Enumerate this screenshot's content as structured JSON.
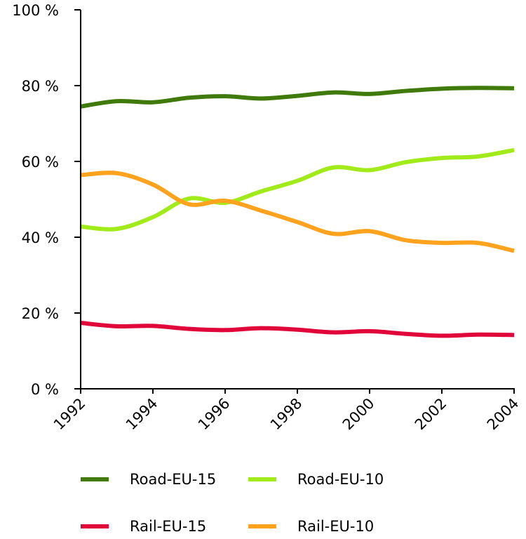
{
  "chart_data": {
    "type": "line",
    "title": "",
    "xlabel": "",
    "ylabel": "",
    "x": [
      1992,
      1993,
      1994,
      1995,
      1996,
      1997,
      1998,
      1999,
      2000,
      2001,
      2002,
      2003,
      2004
    ],
    "x_ticks": [
      "1992",
      "1994",
      "1996",
      "1998",
      "2000",
      "2002",
      "2004"
    ],
    "y_ticks": [
      "0 %",
      "20 %",
      "40 %",
      "60 %",
      "80 %",
      "100 %"
    ],
    "ylim": [
      0,
      100
    ],
    "xlim": [
      1992,
      2004
    ],
    "grid": false,
    "legend_position": "bottom",
    "series": [
      {
        "name": "Road-EU-15",
        "color": "#3f7a0a",
        "values": [
          74.5,
          75.9,
          75.6,
          76.8,
          77.2,
          76.6,
          77.3,
          78.2,
          77.8,
          78.6,
          79.2,
          79.4,
          79.3
        ]
      },
      {
        "name": "Road-EU-10",
        "color": "#a2eb1a",
        "values": [
          42.8,
          42.2,
          45.3,
          50.2,
          49.1,
          52.1,
          54.9,
          58.4,
          57.7,
          59.8,
          60.9,
          61.3,
          63.0
        ]
      },
      {
        "name": "Rail-EU-15",
        "color": "#e0063a",
        "values": [
          17.4,
          16.5,
          16.6,
          15.8,
          15.5,
          16.0,
          15.6,
          14.9,
          15.2,
          14.5,
          14.0,
          14.3,
          14.2
        ]
      },
      {
        "name": "Rail-EU-10",
        "color": "#ffa31f",
        "values": [
          56.4,
          56.9,
          53.9,
          48.7,
          49.6,
          47.0,
          44.0,
          40.9,
          41.6,
          39.2,
          38.5,
          38.5,
          36.4
        ]
      }
    ]
  }
}
